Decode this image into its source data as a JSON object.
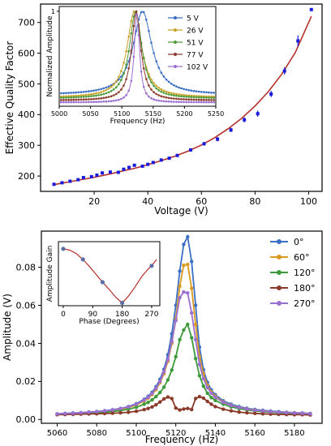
{
  "chart_data": [
    {
      "id": "top_main",
      "type": "scatter",
      "xlabel": "Voltage (V)",
      "ylabel": "Effective Quality Factor",
      "xlim": [
        0,
        105
      ],
      "ylim": [
        150,
        760
      ],
      "xticks": [
        20,
        40,
        60,
        80,
        100
      ],
      "yticks": [
        200,
        300,
        400,
        500,
        600,
        700
      ],
      "colors": {
        "points": "#1a1adb",
        "fit": "#b5302a"
      },
      "series": [
        {
          "kind": "points",
          "x": [
            5,
            8,
            11,
            14,
            16,
            19,
            21,
            23,
            26,
            29,
            31,
            33,
            35,
            38,
            40,
            42,
            45,
            48,
            51,
            56,
            61,
            66,
            71,
            76,
            81,
            86,
            91,
            96,
            101
          ],
          "y": [
            173,
            178,
            183,
            188,
            195,
            198,
            203,
            210,
            213,
            212,
            222,
            228,
            235,
            232,
            238,
            244,
            252,
            258,
            267,
            285,
            305,
            320,
            350,
            383,
            403,
            467,
            542,
            640,
            742
          ],
          "yerr": [
            2,
            2,
            2,
            3,
            3,
            3,
            3,
            4,
            4,
            4,
            4,
            4,
            4,
            4,
            4,
            4,
            4,
            4,
            5,
            5,
            6,
            7,
            7,
            8,
            10,
            10,
            12,
            18,
            3
          ]
        },
        {
          "kind": "fit",
          "x": [
            5,
            10,
            15,
            20,
            25,
            30,
            35,
            40,
            45,
            50,
            55,
            60,
            65,
            70,
            75,
            80,
            85,
            90,
            95,
            101
          ],
          "y": [
            172,
            180,
            188,
            196,
            205,
            215,
            225,
            237,
            250,
            264,
            281,
            301,
            325,
            354,
            388,
            428,
            475,
            532,
            602,
            720
          ]
        }
      ]
    },
    {
      "id": "top_inset",
      "type": "line",
      "xlabel": "Frequency (Hz)",
      "ylabel": "Normalized Amplitude",
      "xlim": [
        5000,
        5250
      ],
      "ylim": [
        0,
        1.05
      ],
      "xticks": [
        5000,
        5050,
        5100,
        5150,
        5200,
        5250
      ],
      "ytick_labels": [
        {
          "value": 1,
          "label": "1"
        }
      ],
      "legend_position": "right",
      "series": [
        {
          "name": "5 V",
          "color": "#3a6fc4",
          "center": 5133,
          "width": 18,
          "baseline": 0.12
        },
        {
          "name": "26 V",
          "color": "#c9a227",
          "center": 5120,
          "width": 14,
          "baseline": 0.09
        },
        {
          "name": "51 V",
          "color": "#4c9a3a",
          "center": 5122,
          "width": 12,
          "baseline": 0.08
        },
        {
          "name": "77 V",
          "color": "#8b3a2a",
          "center": 5123,
          "width": 9,
          "baseline": 0.06
        },
        {
          "name": "102 V",
          "color": "#9b6fd0",
          "center": 5124,
          "width": 5,
          "baseline": 0.04
        }
      ]
    },
    {
      "id": "bottom_main",
      "type": "line",
      "xlabel": "Frequency (Hz)",
      "ylabel": "Amplitude (V)",
      "xlim": [
        5052,
        5194
      ],
      "ylim": [
        -0.002,
        0.099
      ],
      "xticks": [
        5060,
        5080,
        5100,
        5120,
        5140,
        5160,
        5180
      ],
      "yticks": [
        0.0,
        0.02,
        0.04,
        0.06,
        0.08
      ],
      "ytick_labels": [
        "0.00",
        "0.02",
        "0.04",
        "0.06",
        "0.08"
      ],
      "legend_position": "top-right",
      "x": [
        5060,
        5064,
        5068,
        5072,
        5076,
        5080,
        5084,
        5088,
        5092,
        5096,
        5100,
        5104,
        5106,
        5108,
        5110,
        5112,
        5114,
        5116,
        5118,
        5120,
        5122,
        5124,
        5126,
        5128,
        5130,
        5132,
        5134,
        5136,
        5138,
        5140,
        5144,
        5148,
        5152,
        5156,
        5160,
        5164,
        5168,
        5172,
        5176,
        5180,
        5184,
        5188
      ],
      "series": [
        {
          "name": "0°",
          "color": "#3a6fc4",
          "values": [
            0.003,
            0.0032,
            0.0034,
            0.0036,
            0.0039,
            0.0042,
            0.0046,
            0.0051,
            0.0058,
            0.0068,
            0.0083,
            0.0106,
            0.0122,
            0.0143,
            0.0172,
            0.0211,
            0.0264,
            0.034,
            0.045,
            0.06,
            0.078,
            0.092,
            0.096,
            0.083,
            0.06,
            0.038,
            0.0262,
            0.0195,
            0.0155,
            0.013,
            0.0098,
            0.008,
            0.0068,
            0.0059,
            0.0053,
            0.0048,
            0.0044,
            0.0041,
            0.0038,
            0.0036,
            0.0034,
            0.0032
          ]
        },
        {
          "name": "60°",
          "color": "#d99a1e",
          "values": [
            0.0028,
            0.003,
            0.0032,
            0.0034,
            0.0036,
            0.0039,
            0.0043,
            0.0048,
            0.0054,
            0.0063,
            0.0076,
            0.0097,
            0.0112,
            0.0131,
            0.0157,
            0.0193,
            0.024,
            0.0305,
            0.04,
            0.053,
            0.07,
            0.081,
            0.0815,
            0.069,
            0.05,
            0.033,
            0.024,
            0.018,
            0.0145,
            0.0122,
            0.0092,
            0.0075,
            0.0064,
            0.0056,
            0.005,
            0.0045,
            0.0041,
            0.0038,
            0.0036,
            0.0034,
            0.0032,
            0.003
          ]
        },
        {
          "name": "120°",
          "color": "#3d9a3a",
          "values": [
            0.0026,
            0.0028,
            0.0029,
            0.0031,
            0.0033,
            0.0035,
            0.0038,
            0.0042,
            0.0047,
            0.0054,
            0.0064,
            0.008,
            0.009,
            0.0103,
            0.012,
            0.0142,
            0.017,
            0.0208,
            0.026,
            0.033,
            0.042,
            0.047,
            0.05,
            0.043,
            0.032,
            0.023,
            0.0175,
            0.0138,
            0.0115,
            0.01,
            0.008,
            0.0066,
            0.0057,
            0.005,
            0.0045,
            0.0041,
            0.0038,
            0.0035,
            0.0033,
            0.0031,
            0.0029,
            0.0028
          ]
        },
        {
          "name": "180°",
          "color": "#8b3a2a",
          "values": [
            0.0025,
            0.0026,
            0.0027,
            0.0028,
            0.0029,
            0.003,
            0.0031,
            0.0033,
            0.0035,
            0.0038,
            0.0043,
            0.0052,
            0.0058,
            0.0066,
            0.0077,
            0.0092,
            0.0108,
            0.0118,
            0.011,
            0.006,
            0.005,
            0.0055,
            0.0058,
            0.0052,
            0.011,
            0.012,
            0.0112,
            0.0095,
            0.008,
            0.0068,
            0.0054,
            0.0045,
            0.0039,
            0.0035,
            0.0032,
            0.003,
            0.0028,
            0.0027,
            0.0026,
            0.0025,
            0.0025,
            0.0024
          ]
        },
        {
          "name": "270°",
          "color": "#9b6fd0",
          "values": [
            0.0029,
            0.0031,
            0.0033,
            0.0035,
            0.0038,
            0.0041,
            0.0045,
            0.005,
            0.0057,
            0.0066,
            0.008,
            0.0102,
            0.0117,
            0.0137,
            0.0164,
            0.02,
            0.025,
            0.0315,
            0.041,
            0.052,
            0.064,
            0.067,
            0.0665,
            0.056,
            0.042,
            0.029,
            0.0215,
            0.0168,
            0.0138,
            0.0117,
            0.009,
            0.0074,
            0.0063,
            0.0055,
            0.0049,
            0.0045,
            0.0041,
            0.0038,
            0.0036,
            0.0034,
            0.0032,
            0.003
          ]
        }
      ]
    },
    {
      "id": "bottom_inset",
      "type": "line",
      "xlabel": "Phase (Degrees)",
      "ylabel": "Amplitude Gain",
      "xlim": [
        -15,
        295
      ],
      "ylim": [
        0.15,
        1.05
      ],
      "xticks": [
        0,
        90,
        180,
        270
      ],
      "colors": {
        "line": "#b5302a",
        "points": "#5a6fa8"
      },
      "points": {
        "x": [
          0,
          60,
          120,
          180,
          270
        ],
        "y": [
          0.95,
          0.8,
          0.48,
          0.19,
          0.71
        ]
      },
      "curve": {
        "x": [
          0,
          20,
          40,
          60,
          80,
          100,
          120,
          140,
          160,
          180,
          200,
          220,
          240,
          260,
          270,
          285
        ],
        "y": [
          0.95,
          0.93,
          0.88,
          0.8,
          0.7,
          0.59,
          0.48,
          0.38,
          0.27,
          0.19,
          0.29,
          0.42,
          0.56,
          0.67,
          0.71,
          0.8
        ]
      }
    }
  ]
}
